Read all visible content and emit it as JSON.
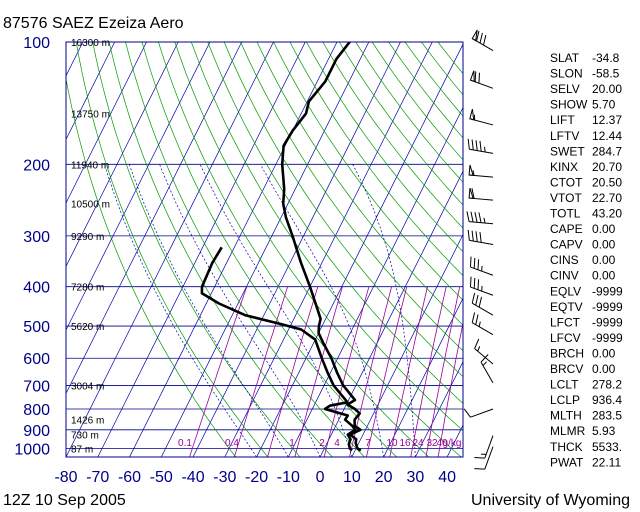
{
  "header": {
    "station_title": "87576 SAEZ Ezeiza Aero",
    "datetime": "12Z 10 Sep 2005",
    "credit": "University of Wyoming"
  },
  "chart_data": {
    "type": "line",
    "xlim": [
      -80,
      45
    ],
    "pressure_range": [
      100,
      1050
    ],
    "y_scale": "log",
    "pressure_ticks": [
      100,
      200,
      300,
      400,
      500,
      600,
      700,
      800,
      900,
      1000
    ],
    "temperature_ticks": [
      -80,
      -70,
      -60,
      -50,
      -40,
      -30,
      -20,
      -10,
      0,
      10,
      20,
      30,
      40
    ],
    "height_labels": [
      {
        "p": 100,
        "text": "16300 m"
      },
      {
        "p": 150,
        "text": "13750 m"
      },
      {
        "p": 200,
        "text": "11940 m"
      },
      {
        "p": 250,
        "text": "10500 m"
      },
      {
        "p": 300,
        "text": "9290 m"
      },
      {
        "p": 400,
        "text": "7280 m"
      },
      {
        "p": 500,
        "text": "5620 m"
      },
      {
        "p": 700,
        "text": "3004 m"
      },
      {
        "p": 850,
        "text": "1426 m"
      },
      {
        "p": 925,
        "text": "730 m"
      },
      {
        "p": 1000,
        "text": "87 m"
      }
    ],
    "mixing_ratio_labels": [
      "0.1",
      "0.4",
      "1",
      "2",
      "4",
      "7",
      "10",
      "16",
      "24",
      "32",
      "40",
      "g/kg"
    ],
    "mixing_ratio_values": [
      0.1,
      0.4,
      1,
      2,
      4,
      7,
      10,
      16,
      24,
      32,
      40
    ],
    "series": [
      {
        "role": "temperature",
        "points": [
          [
            1012,
            11.8
          ],
          [
            1000,
            10.4
          ],
          [
            970,
            9.0
          ],
          [
            950,
            8.6
          ],
          [
            925,
            6.0
          ],
          [
            900,
            8.4
          ],
          [
            880,
            6.0
          ],
          [
            850,
            5.0
          ],
          [
            820,
            5.6
          ],
          [
            800,
            3.4
          ],
          [
            780,
            0.4
          ],
          [
            760,
            2.0
          ],
          [
            700,
            -4.0
          ],
          [
            650,
            -8.0
          ],
          [
            600,
            -12.0
          ],
          [
            550,
            -17.0
          ],
          [
            520,
            -20.0
          ],
          [
            500,
            -21.0
          ],
          [
            480,
            -21.6
          ],
          [
            400,
            -30.0
          ],
          [
            350,
            -36.5
          ],
          [
            300,
            -43.5
          ],
          [
            270,
            -48.5
          ],
          [
            250,
            -51.5
          ],
          [
            230,
            -53.5
          ],
          [
            200,
            -58.0
          ],
          [
            180,
            -60.5
          ],
          [
            165,
            -60.0
          ],
          [
            150,
            -58.5
          ],
          [
            140,
            -59.5
          ],
          [
            125,
            -57.5
          ],
          [
            110,
            -57.5
          ],
          [
            100,
            -56.0
          ]
        ]
      },
      {
        "role": "dewpoint",
        "points": [
          [
            1012,
            9.0
          ],
          [
            1000,
            8.0
          ],
          [
            975,
            7.0
          ],
          [
            950,
            6.8
          ],
          [
            925,
            5.2
          ],
          [
            900,
            6.8
          ],
          [
            880,
            5.2
          ],
          [
            850,
            2.0
          ],
          [
            830,
            2.2
          ],
          [
            800,
            -6.0
          ],
          [
            785,
            -5.0
          ],
          [
            770,
            0.0
          ],
          [
            700,
            -7.0
          ],
          [
            650,
            -11.0
          ],
          [
            600,
            -15.0
          ],
          [
            540,
            -20.0
          ],
          [
            510,
            -26.0
          ],
          [
            495,
            -33.0
          ],
          [
            470,
            -46.0
          ],
          [
            440,
            -56.0
          ],
          [
            415,
            -63.0
          ],
          [
            400,
            -64.0
          ],
          [
            350,
            -64.5
          ],
          [
            320,
            -64.0
          ]
        ]
      }
    ]
  },
  "indices": [
    {
      "name": "SLAT",
      "value": "-34.8"
    },
    {
      "name": "SLON",
      "value": "-58.5"
    },
    {
      "name": "SELV",
      "value": "20.00"
    },
    {
      "name": "SHOW",
      "value": "5.70"
    },
    {
      "name": "LIFT",
      "value": "12.37"
    },
    {
      "name": "LFTV",
      "value": "12.44"
    },
    {
      "name": "SWET",
      "value": "284.7"
    },
    {
      "name": "KINX",
      "value": "20.70"
    },
    {
      "name": "CTOT",
      "value": "20.50"
    },
    {
      "name": "VTOT",
      "value": "22.70"
    },
    {
      "name": "TOTL",
      "value": "43.20"
    },
    {
      "name": "CAPE",
      "value": "0.00"
    },
    {
      "name": "CAPV",
      "value": "0.00"
    },
    {
      "name": "CINS",
      "value": "0.00"
    },
    {
      "name": "CINV",
      "value": "0.00"
    },
    {
      "name": "EQLV",
      "value": "-9999"
    },
    {
      "name": "EQTV",
      "value": "-9999"
    },
    {
      "name": "LFCT",
      "value": "-9999"
    },
    {
      "name": "LFCV",
      "value": "-9999"
    },
    {
      "name": "BRCH",
      "value": "0.00"
    },
    {
      "name": "BRCV",
      "value": "0.00"
    },
    {
      "name": "LCLT",
      "value": "278.2"
    },
    {
      "name": "LCLP",
      "value": "936.4"
    },
    {
      "name": "MLTH",
      "value": "283.5"
    },
    {
      "name": "MLMR",
      "value": "5.93"
    },
    {
      "name": "THCK",
      "value": "5533."
    },
    {
      "name": "PWAT",
      "value": "22.11"
    }
  ],
  "wind_barbs": [
    {
      "p": 105,
      "dir": 300,
      "kt": 80
    },
    {
      "p": 130,
      "dir": 290,
      "kt": 70
    },
    {
      "p": 160,
      "dir": 285,
      "kt": 55
    },
    {
      "p": 188,
      "dir": 280,
      "kt": 45
    },
    {
      "p": 215,
      "dir": 275,
      "kt": 55
    },
    {
      "p": 245,
      "dir": 275,
      "kt": 60
    },
    {
      "p": 280,
      "dir": 275,
      "kt": 45
    },
    {
      "p": 315,
      "dir": 280,
      "kt": 40
    },
    {
      "p": 375,
      "dir": 290,
      "kt": 35
    },
    {
      "p": 420,
      "dir": 290,
      "kt": 35
    },
    {
      "p": 470,
      "dir": 300,
      "kt": 30
    },
    {
      "p": 525,
      "dir": 300,
      "kt": 25
    },
    {
      "p": 620,
      "dir": 310,
      "kt": 15
    },
    {
      "p": 690,
      "dir": 330,
      "kt": 15
    },
    {
      "p": 800,
      "dir": 250,
      "kt": 10
    },
    {
      "p": 930,
      "dir": 200,
      "kt": 15
    },
    {
      "p": 990,
      "dir": 200,
      "kt": 10
    }
  ],
  "colors": {
    "frame": "#000088",
    "isotherm": "#0000aa",
    "dry_adiabat": "#009a00",
    "moist_adiabat": "#0000aa",
    "mixing_ratio": "#990099",
    "sounding": "#000000",
    "height_label": "#000000"
  }
}
